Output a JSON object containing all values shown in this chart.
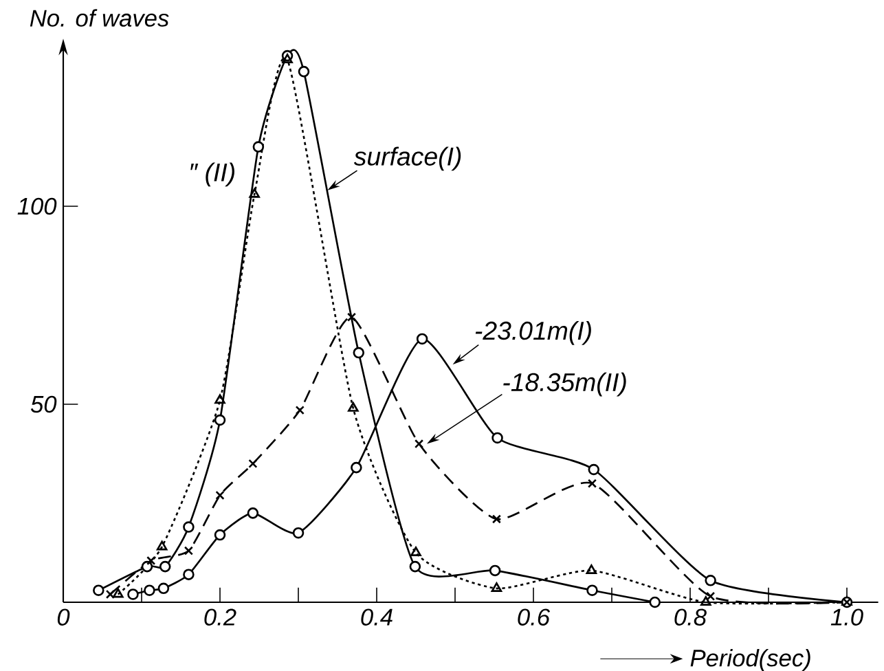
{
  "chart_data": {
    "type": "line",
    "xlabel": "Period(sec)",
    "ylabel": "No. of waves",
    "xlim": [
      0,
      1.04
    ],
    "ylim": [
      0,
      140
    ],
    "xticks": [
      0,
      {
        "value": 0.1,
        "label": null
      },
      0.2,
      {
        "value": 0.3,
        "label": null
      },
      0.4,
      {
        "value": 0.5,
        "label": null
      },
      0.6,
      {
        "value": 0.7,
        "label": null
      },
      0.8,
      {
        "value": 0.9,
        "label": null
      },
      {
        "value": 1.0,
        "label": "1.0"
      }
    ],
    "yticks": [
      50,
      100
    ],
    "series": [
      {
        "name": "surface(I)",
        "color": "#000000",
        "line_style": "solid",
        "marker": "circle",
        "x": [
          0.045,
          0.107,
          0.13,
          0.16,
          0.2,
          0.249,
          0.286,
          0.307,
          0.377,
          0.449,
          0.551,
          0.675,
          0.755
        ],
        "values": [
          3,
          9,
          9,
          19,
          46,
          115,
          138,
          134,
          63,
          9,
          8,
          3,
          0
        ]
      },
      {
        "name": "″     (II)",
        "color": "#000000",
        "line_style": "dotted",
        "marker": "triangle",
        "x": [
          0.07,
          0.126,
          0.2,
          0.244,
          0.286,
          0.37,
          0.45,
          0.553,
          0.674,
          0.82,
          1.0
        ],
        "values": [
          2,
          14,
          51,
          103,
          137,
          49,
          12.5,
          3.5,
          8,
          0,
          0
        ]
      },
      {
        "name": "-23.01m(I)",
        "color": "#000000",
        "line_style": "solid",
        "marker": "circle",
        "x": [
          0.089,
          0.11,
          0.128,
          0.16,
          0.2,
          0.242,
          0.3,
          0.374,
          0.458,
          0.554,
          0.677,
          0.826,
          1.0
        ],
        "values": [
          2,
          3,
          3.5,
          7,
          17,
          22.5,
          17.5,
          34,
          66.5,
          41.5,
          33.5,
          5.5,
          0
        ]
      },
      {
        "name": "-18.35m(II)",
        "color": "#000000",
        "line_style": "dashed",
        "marker": "cross",
        "x": [
          0.06,
          0.112,
          0.16,
          0.2,
          0.242,
          0.302,
          0.368,
          0.454,
          0.553,
          0.675,
          0.826,
          1.0
        ],
        "values": [
          2,
          10.5,
          13,
          27,
          35,
          48.5,
          72,
          40,
          21,
          30,
          1.5,
          0
        ]
      }
    ]
  }
}
